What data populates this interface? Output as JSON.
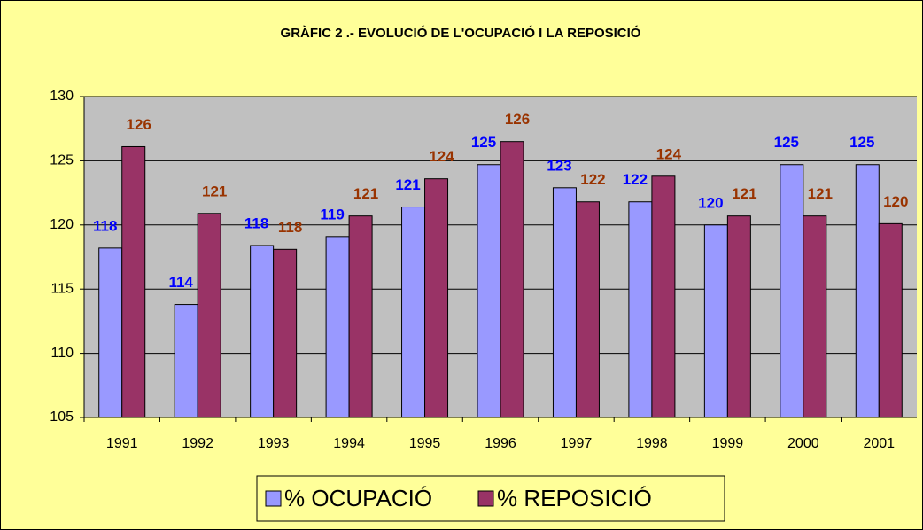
{
  "chart_data": {
    "type": "bar",
    "title": "GRÀFIC 2 .- EVOLUCIÓ DE L'OCUPACIÓ I LA REPOSICIÓ",
    "categories": [
      "1991",
      "1992",
      "1993",
      "1994",
      "1995",
      "1996",
      "1997",
      "1998",
      "1999",
      "2000",
      "2001"
    ],
    "series": [
      {
        "name": "% OCUPACIÓ",
        "color": "#9999ff",
        "label_color": "#0000ff",
        "values": [
          118.2,
          113.8,
          118.4,
          119.1,
          121.4,
          124.7,
          122.9,
          121.8,
          120.0,
          124.7,
          124.7
        ],
        "value_labels": [
          "118",
          "114",
          "118",
          "119",
          "121",
          "125",
          "123",
          "122",
          "120",
          "125",
          "125"
        ]
      },
      {
        "name": "% REPOSICIÓ",
        "color": "#993366",
        "label_color": "#993300",
        "values": [
          126.1,
          120.9,
          118.1,
          120.7,
          123.6,
          126.5,
          121.8,
          123.8,
          120.7,
          120.7,
          120.1
        ],
        "value_labels": [
          "126",
          "121",
          "118",
          "121",
          "124",
          "126",
          "122",
          "124",
          "121",
          "121",
          "120"
        ]
      }
    ],
    "ylim": [
      105,
      130
    ],
    "yticks": [
      105,
      110,
      115,
      120,
      125,
      130
    ],
    "grid": true,
    "legend": "bottom"
  }
}
